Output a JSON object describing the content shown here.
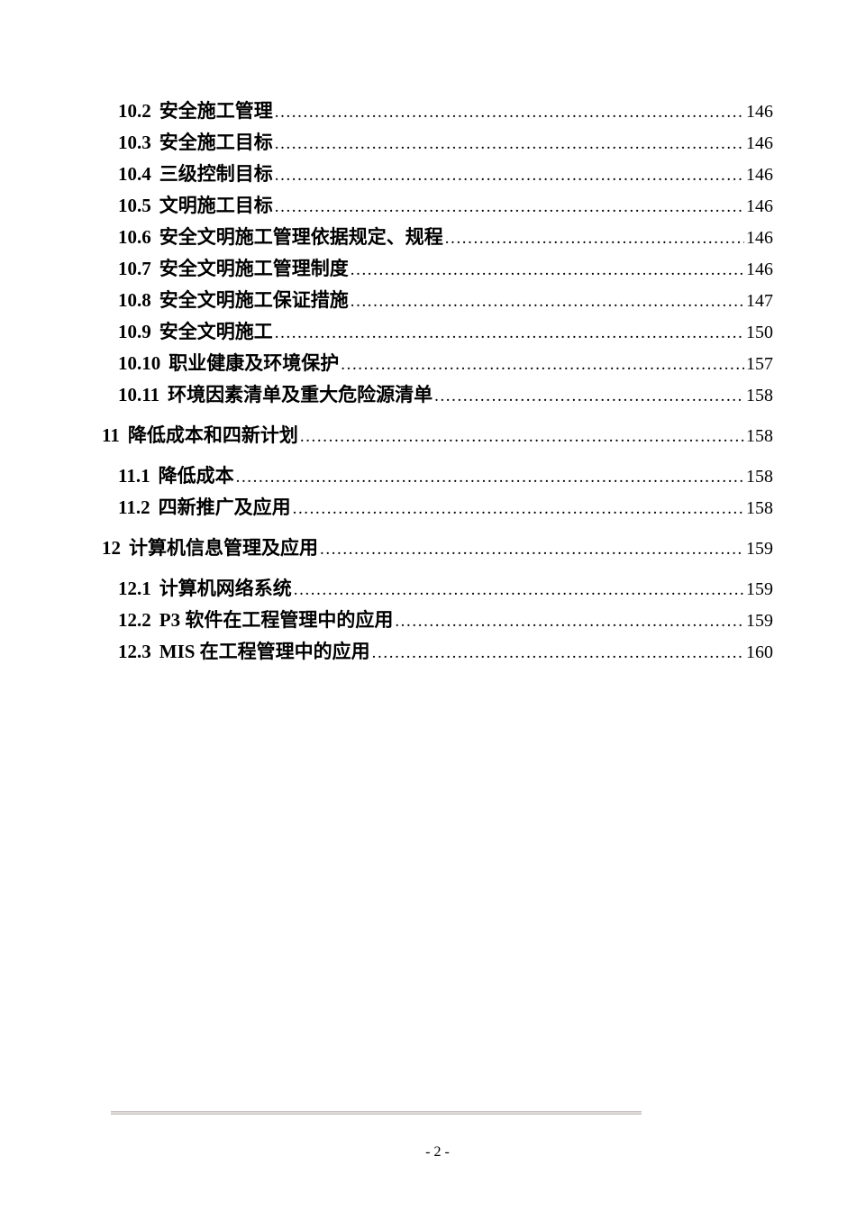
{
  "toc": {
    "leader_char": ".",
    "entries": [
      {
        "level": 2,
        "number": "10.2",
        "title": "安全施工管理",
        "page": "146"
      },
      {
        "level": 2,
        "number": "10.3",
        "title": "安全施工目标",
        "page": "146"
      },
      {
        "level": 2,
        "number": "10.4",
        "title": "三级控制目标",
        "page": "146"
      },
      {
        "level": 2,
        "number": "10.5",
        "title": "文明施工目标",
        "page": "146"
      },
      {
        "level": 2,
        "number": "10.6",
        "title": "安全文明施工管理依据规定、规程",
        "page": "146"
      },
      {
        "level": 2,
        "number": "10.7",
        "title": "安全文明施工管理制度",
        "page": "146"
      },
      {
        "level": 2,
        "number": "10.8",
        "title": "安全文明施工保证措施",
        "page": "147"
      },
      {
        "level": 2,
        "number": "10.9",
        "title": "安全文明施工",
        "page": "150"
      },
      {
        "level": 2,
        "number": "10.10",
        "title": "职业健康及环境保护",
        "page": "157"
      },
      {
        "level": 2,
        "number": "10.11",
        "title": "环境因素清单及重大危险源清单",
        "page": "158"
      },
      {
        "level": 1,
        "number": "11",
        "title": "降低成本和四新计划",
        "page": "158"
      },
      {
        "level": 2,
        "number": "11.1",
        "title": "降低成本",
        "page": "158"
      },
      {
        "level": 2,
        "number": "11.2",
        "title": "四新推广及应用",
        "page": "158"
      },
      {
        "level": 1,
        "number": "12",
        "title": "计算机信息管理及应用",
        "page": "159"
      },
      {
        "level": 2,
        "number": "12.1",
        "title": "计算机网络系统",
        "page": "159"
      },
      {
        "level": 2,
        "number": "12.2",
        "title": "P3 软件在工程管理中的应用",
        "page": "159"
      },
      {
        "level": 2,
        "number": "12.3",
        "title": "MIS 在工程管理中的应用",
        "page": "160"
      }
    ]
  },
  "footer": {
    "page_label": "- 2 -",
    "rule_color": "#c4bcbc"
  }
}
